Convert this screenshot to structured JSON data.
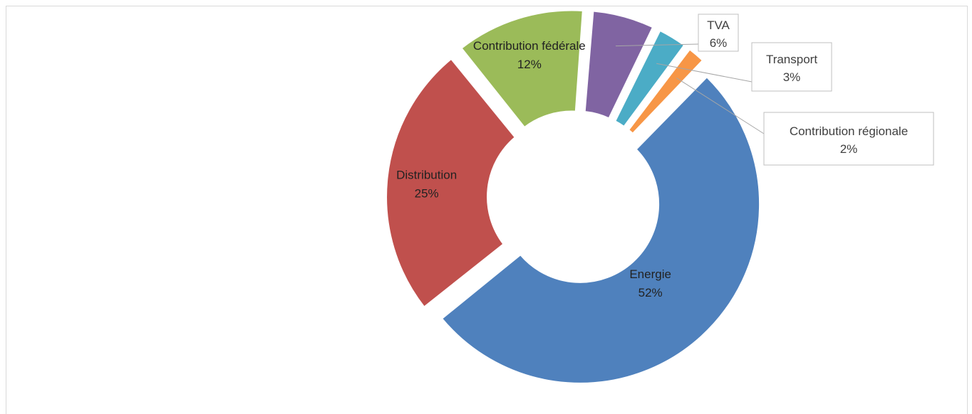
{
  "chart_data": {
    "type": "pie",
    "variant": "doughnut",
    "title": "",
    "slices": [
      {
        "name": "Energie",
        "value": 52,
        "label": "52%",
        "color": "#4F81BD"
      },
      {
        "name": "Distribution",
        "value": 25,
        "label": "25%",
        "color": "#C0504D"
      },
      {
        "name": "Contribution fédérale",
        "value": 12,
        "label": "12%",
        "color": "#9BBB59"
      },
      {
        "name": "TVA",
        "value": 6,
        "label": "6%",
        "color": "#8064A2"
      },
      {
        "name": "Transport",
        "value": 3,
        "label": "3%",
        "color": "#4BACC6"
      },
      {
        "name": "Contribution régionale",
        "value": 2,
        "label": "2%",
        "color": "#F79646"
      }
    ],
    "labels_show": "category name and percentage",
    "slices_exploded": true,
    "legend": "none"
  }
}
